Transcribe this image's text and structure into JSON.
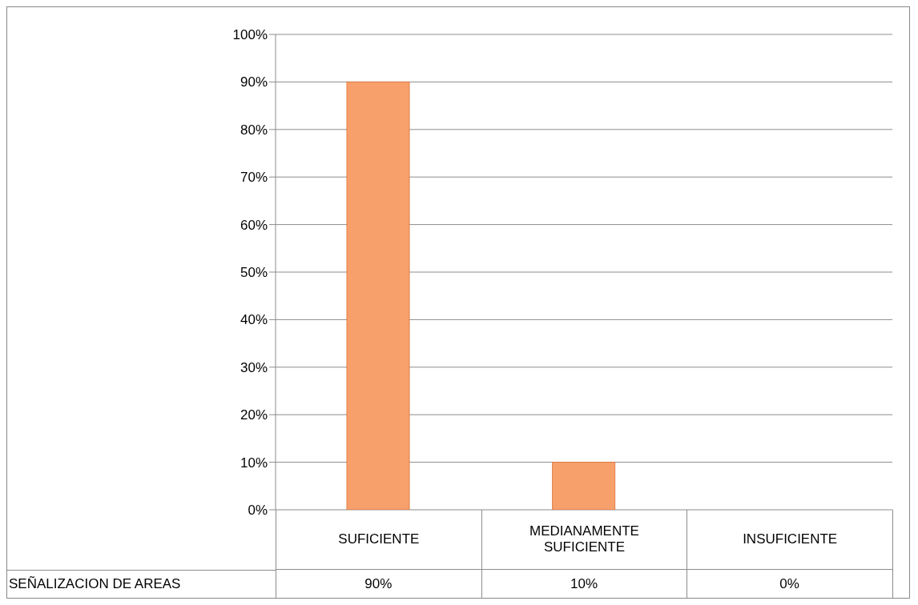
{
  "chart_data": {
    "type": "bar",
    "categories": [
      "SUFICIENTE",
      "MEDIANAMENTE SUFICIENTE",
      "INSUFICIENTE"
    ],
    "series": [
      {
        "name": "SEÑALIZACION DE AREAS",
        "color": "#f7a06c",
        "values": [
          90,
          10,
          0
        ],
        "value_labels": [
          "90%",
          "10%",
          "0%"
        ]
      }
    ],
    "ylim": [
      0,
      100
    ],
    "yticks": [
      {
        "value": 0,
        "label": "0%"
      },
      {
        "value": 10,
        "label": "10%"
      },
      {
        "value": 20,
        "label": "20%"
      },
      {
        "value": 30,
        "label": "30%"
      },
      {
        "value": 40,
        "label": "40%"
      },
      {
        "value": 50,
        "label": "50%"
      },
      {
        "value": 60,
        "label": "60%"
      },
      {
        "value": 70,
        "label": "70%"
      },
      {
        "value": 80,
        "label": "80%"
      },
      {
        "value": 90,
        "label": "90%"
      },
      {
        "value": 100,
        "label": "100%"
      }
    ],
    "grid": "y"
  }
}
